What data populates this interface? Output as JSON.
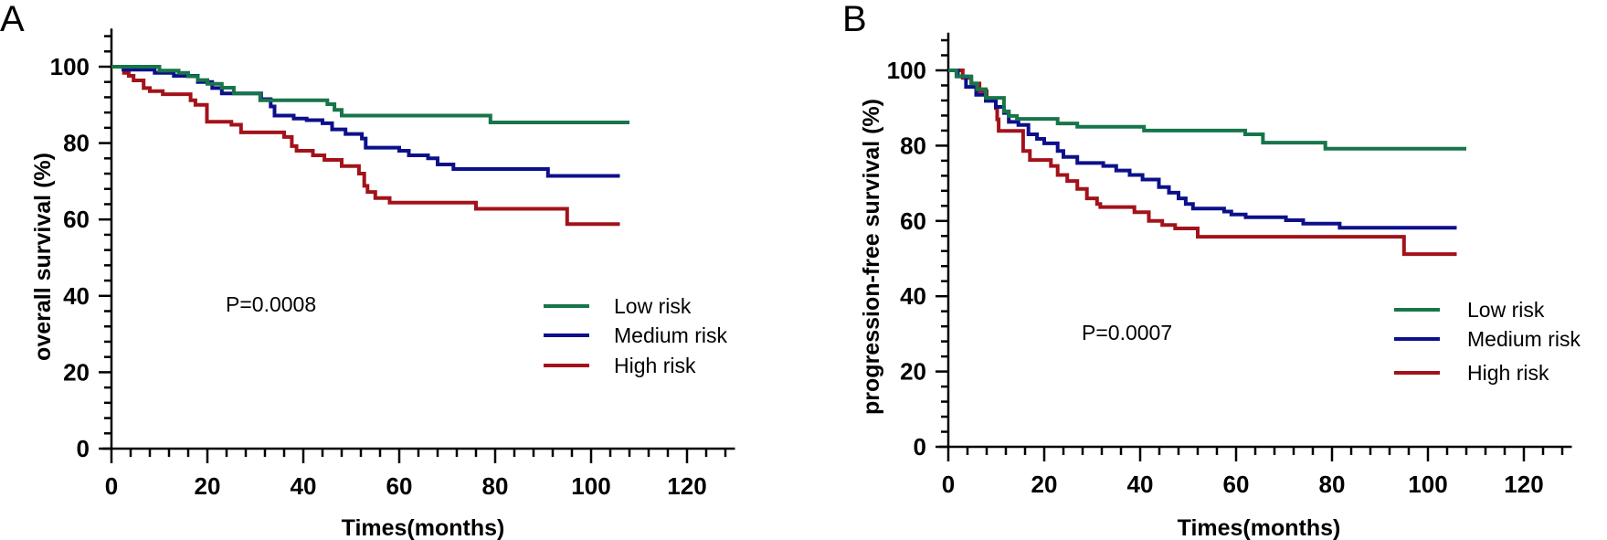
{
  "colors": {
    "low": "#17754a",
    "medium": "#0c108a",
    "high": "#a3121a"
  },
  "chart_data": [
    {
      "type": "line",
      "subtype": "kaplan-meier step",
      "panel_label": "A",
      "xlabel": "Times(months)",
      "ylabel": "overall survival (%)",
      "xlim": [
        0,
        130
      ],
      "ylim": [
        0,
        110
      ],
      "xticks": [
        "0",
        "20",
        "40",
        "60",
        "80",
        "100",
        "120"
      ],
      "yticks": [
        "0",
        "20",
        "40",
        "60",
        "80",
        "100"
      ],
      "annotation": "P=0.0008",
      "legend_position": "right-middle",
      "series": [
        {
          "name": "Low risk",
          "color_key": "low",
          "end": 108,
          "points": [
            [
              0,
              100
            ],
            [
              10,
              99
            ],
            [
              14,
              98.4
            ],
            [
              16,
              97.5
            ],
            [
              18,
              96.5
            ],
            [
              20,
              95.5
            ],
            [
              23,
              94.5
            ],
            [
              25.5,
              93
            ],
            [
              31,
              91.2
            ],
            [
              45,
              90.2
            ],
            [
              46.5,
              88.7
            ],
            [
              48,
              87.2
            ],
            [
              79,
              85.4
            ]
          ]
        },
        {
          "name": "Medium risk",
          "color_key": "medium",
          "end": 106,
          "points": [
            [
              0,
              100
            ],
            [
              2.5,
              99.2
            ],
            [
              9,
              98.4
            ],
            [
              13,
              97.6
            ],
            [
              18,
              96
            ],
            [
              21,
              94.4
            ],
            [
              23,
              93
            ],
            [
              31.2,
              91.5
            ],
            [
              33.2,
              89.6
            ],
            [
              34,
              87.2
            ],
            [
              38,
              86.4
            ],
            [
              40.7,
              86
            ],
            [
              44,
              85.2
            ],
            [
              46,
              83.6
            ],
            [
              48.8,
              82.4
            ],
            [
              52.2,
              81.2
            ],
            [
              53,
              78.8
            ],
            [
              60,
              78
            ],
            [
              62,
              76.8
            ],
            [
              66,
              76
            ],
            [
              68,
              74.4
            ],
            [
              71.3,
              73.2
            ],
            [
              91,
              71.4
            ]
          ]
        },
        {
          "name": "High risk",
          "color_key": "high",
          "end": 106,
          "points": [
            [
              0,
              100
            ],
            [
              2.6,
              98.4
            ],
            [
              3.6,
              97.6
            ],
            [
              4.6,
              96.4
            ],
            [
              6.7,
              94.4
            ],
            [
              8,
              93.6
            ],
            [
              10.7,
              92.8
            ],
            [
              16.5,
              91.2
            ],
            [
              17.5,
              90
            ],
            [
              19.9,
              85.6
            ],
            [
              25,
              84.8
            ],
            [
              27,
              82.8
            ],
            [
              36,
              81.6
            ],
            [
              37.6,
              79.2
            ],
            [
              38.6,
              78
            ],
            [
              42,
              76.8
            ],
            [
              44.4,
              75.6
            ],
            [
              48,
              74
            ],
            [
              51.6,
              72
            ],
            [
              52.7,
              68.8
            ],
            [
              53.4,
              67.2
            ],
            [
              55,
              65.6
            ],
            [
              58,
              64.4
            ],
            [
              76,
              62.8
            ],
            [
              95,
              58.8
            ]
          ]
        }
      ]
    },
    {
      "type": "line",
      "subtype": "kaplan-meier step",
      "panel_label": "B",
      "xlabel": "Times(months)",
      "ylabel": "progression-free survival (%)",
      "xlim": [
        0,
        130
      ],
      "ylim": [
        0,
        110
      ],
      "xticks": [
        "0",
        "20",
        "40",
        "60",
        "80",
        "100",
        "120"
      ],
      "yticks": [
        "0",
        "20",
        "40",
        "60",
        "80",
        "100"
      ],
      "annotation": "P=0.0007",
      "legend_position": "right-middle",
      "series": [
        {
          "name": "Low risk",
          "color_key": "low",
          "end": 108,
          "points": [
            [
              0,
              100
            ],
            [
              1.7,
              98.4
            ],
            [
              4.8,
              96.5
            ],
            [
              6,
              95
            ],
            [
              7.8,
              92.7
            ],
            [
              11.6,
              89.1
            ],
            [
              12.6,
              87.9
            ],
            [
              14.3,
              87.1
            ],
            [
              22.8,
              85.9
            ],
            [
              26.9,
              85
            ],
            [
              40.8,
              84
            ],
            [
              61.9,
              83
            ],
            [
              65.6,
              80.8
            ],
            [
              78.6,
              79.2
            ]
          ]
        },
        {
          "name": "Medium risk",
          "color_key": "medium",
          "end": 106,
          "points": [
            [
              0,
              100
            ],
            [
              2,
              98.4
            ],
            [
              3.7,
              95.6
            ],
            [
              5.8,
              93.5
            ],
            [
              7.8,
              91.9
            ],
            [
              9.9,
              90.3
            ],
            [
              11.6,
              88.7
            ],
            [
              12.6,
              86.3
            ],
            [
              14.6,
              85.5
            ],
            [
              16.7,
              83
            ],
            [
              18.5,
              81.8
            ],
            [
              20,
              80.6
            ],
            [
              22.8,
              78.6
            ],
            [
              24,
              77
            ],
            [
              26.9,
              75.4
            ],
            [
              32.3,
              74.6
            ],
            [
              35,
              73.4
            ],
            [
              37.8,
              72.2
            ],
            [
              40.5,
              71
            ],
            [
              43.9,
              69
            ],
            [
              46,
              67.5
            ],
            [
              48,
              66
            ],
            [
              49.5,
              64.5
            ],
            [
              51,
              63.3
            ],
            [
              57.5,
              62.5
            ],
            [
              59,
              61.7
            ],
            [
              62,
              61
            ],
            [
              70.4,
              60.2
            ],
            [
              74,
              59.3
            ],
            [
              81.6,
              58.2
            ]
          ]
        },
        {
          "name": "High risk",
          "color_key": "high",
          "end": 106,
          "points": [
            [
              0,
              100
            ],
            [
              3,
              98
            ],
            [
              4.8,
              96.5
            ],
            [
              6.5,
              94.5
            ],
            [
              8,
              92.5
            ],
            [
              9.9,
              90
            ],
            [
              10.2,
              87
            ],
            [
              10.5,
              83.9
            ],
            [
              15.6,
              78.6
            ],
            [
              17,
              76.2
            ],
            [
              21.4,
              74.6
            ],
            [
              22.8,
              72.2
            ],
            [
              24.8,
              70.6
            ],
            [
              26.9,
              68.5
            ],
            [
              28.9,
              66
            ],
            [
              31,
              64.5
            ],
            [
              31.7,
              63.7
            ],
            [
              38.8,
              62.3
            ],
            [
              41.8,
              60
            ],
            [
              44.6,
              58.9
            ],
            [
              47.3,
              58
            ],
            [
              52,
              55.8
            ],
            [
              95,
              51.2
            ]
          ]
        }
      ]
    }
  ]
}
